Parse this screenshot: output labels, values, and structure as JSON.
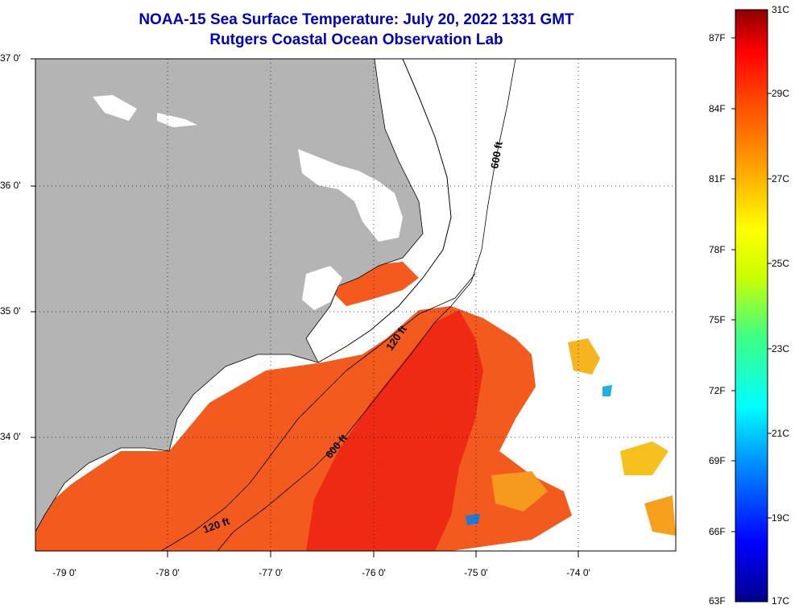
{
  "title_line1": "NOAA-15 Sea Surface Temperature:  July 20, 2022 1331 GMT",
  "title_line2": "Rutgers Coastal Ocean Observation Lab",
  "lat_labels": [
    "37 0'",
    "36 0'",
    "35 0'",
    "34 0'"
  ],
  "lon_labels": [
    "-79 0'",
    "-78 0'",
    "-77 0'",
    "-76 0'",
    "-75 0'",
    "-74 0'"
  ],
  "isobaths": [
    "600 ft",
    "120 ft",
    "600 ft",
    "120 ft"
  ],
  "colorbar": {
    "fahrenheit": [
      "87F",
      "84F",
      "81F",
      "78F",
      "75F",
      "72F",
      "69F",
      "66F",
      "63F"
    ],
    "celsius": [
      "31C",
      "29C",
      "27C",
      "25C",
      "23C",
      "21C",
      "19C",
      "17C"
    ],
    "colors": [
      "#00008b",
      "#0000ff",
      "#0080ff",
      "#00ffff",
      "#40ff80",
      "#ccff00",
      "#ffff00",
      "#ffa500",
      "#ff4500",
      "#ff0000",
      "#8b0000"
    ]
  },
  "colors": {
    "land": "#b4b4b4",
    "ocean_warm": "#f25a1e",
    "ocean_hot": "#ee3018",
    "title": "#0000b4"
  }
}
